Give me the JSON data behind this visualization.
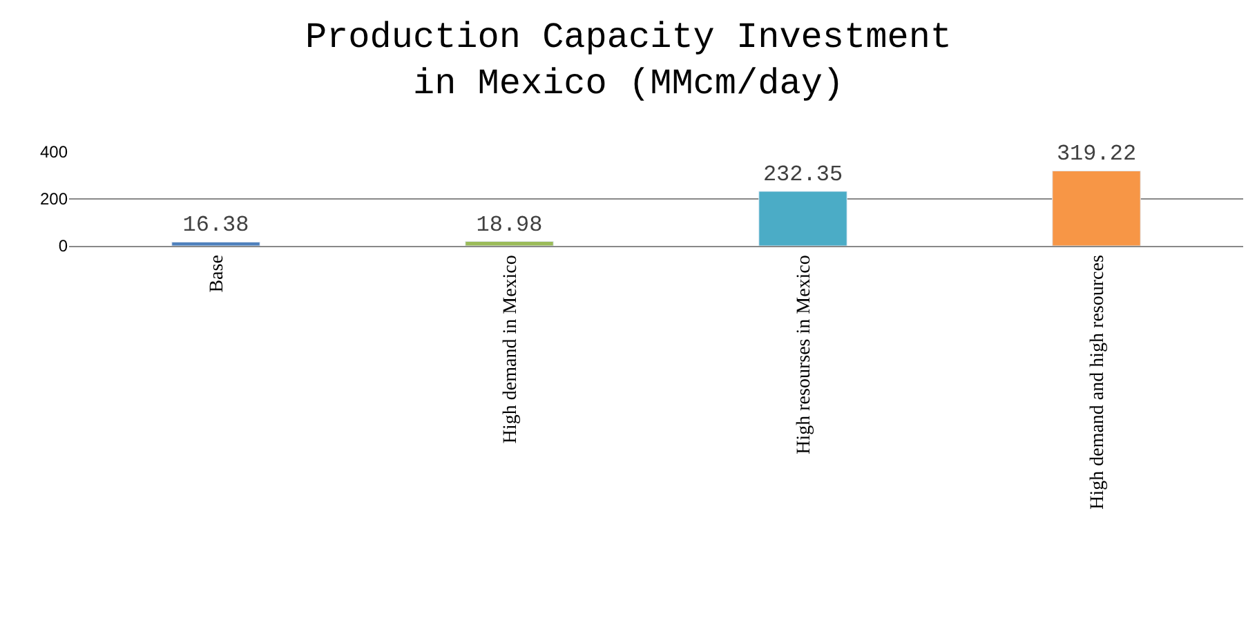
{
  "chart_data": {
    "type": "bar",
    "title": "Production Capacity Investment\nin Mexico (MMcm/day)",
    "categories": [
      "Base",
      "High demand in Mexico",
      "High resourses in Mexico",
      "High demand and high resources"
    ],
    "values": [
      16.38,
      18.98,
      232.35,
      319.22
    ],
    "colors": [
      "#4f81bd",
      "#9bbb59",
      "#4bacc6",
      "#f79646"
    ],
    "ylim": [
      0,
      400
    ],
    "yticks": [
      0,
      200,
      400
    ],
    "grid": "y",
    "data_labels": true
  }
}
